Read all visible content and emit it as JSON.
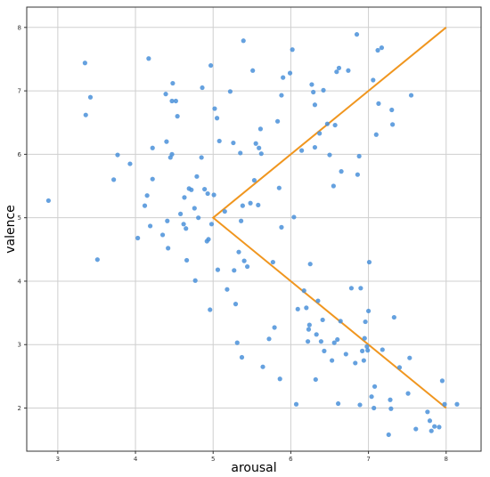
{
  "chart_data": {
    "type": "scatter",
    "title": "",
    "xlabel": "arousal",
    "ylabel": "valence",
    "xlim": [
      2.6,
      8.45
    ],
    "ylim": [
      1.32,
      8.32
    ],
    "xticks": [
      3,
      4,
      5,
      6,
      7,
      8
    ],
    "yticks": [
      2,
      3,
      4,
      5,
      6,
      7,
      8
    ],
    "grid": true,
    "legend": "none",
    "colors": {
      "points": "#4a90d9",
      "line": "#f0961f",
      "grid": "#cfcfcf",
      "frame": "#333333"
    },
    "series": [
      {
        "type": "scatter",
        "points": [
          [
            2.88,
            5.27
          ],
          [
            3.35,
            7.44
          ],
          [
            3.36,
            6.62
          ],
          [
            3.42,
            6.9
          ],
          [
            3.51,
            4.34
          ],
          [
            3.72,
            5.6
          ],
          [
            3.77,
            5.99
          ],
          [
            3.93,
            5.85
          ],
          [
            4.03,
            4.68
          ],
          [
            4.12,
            5.19
          ],
          [
            4.15,
            5.35
          ],
          [
            4.17,
            7.51
          ],
          [
            4.19,
            4.87
          ],
          [
            4.22,
            6.1
          ],
          [
            4.22,
            5.61
          ],
          [
            4.35,
            4.73
          ],
          [
            4.39,
            6.95
          ],
          [
            4.4,
            6.2
          ],
          [
            4.41,
            4.95
          ],
          [
            4.42,
            4.52
          ],
          [
            4.45,
            5.95
          ],
          [
            4.47,
            6.0
          ],
          [
            4.47,
            6.84
          ],
          [
            4.48,
            7.12
          ],
          [
            4.52,
            6.84
          ],
          [
            4.54,
            6.6
          ],
          [
            4.58,
            5.06
          ],
          [
            4.62,
            4.9
          ],
          [
            4.63,
            5.32
          ],
          [
            4.65,
            4.83
          ],
          [
            4.66,
            4.33
          ],
          [
            4.69,
            5.46
          ],
          [
            4.72,
            5.44
          ],
          [
            4.76,
            5.15
          ],
          [
            4.77,
            4.01
          ],
          [
            4.79,
            5.65
          ],
          [
            4.81,
            5.0
          ],
          [
            4.85,
            5.95
          ],
          [
            4.86,
            7.05
          ],
          [
            4.89,
            5.45
          ],
          [
            4.92,
            4.63
          ],
          [
            4.93,
            5.38
          ],
          [
            4.94,
            4.66
          ],
          [
            4.96,
            3.55
          ],
          [
            4.97,
            7.4
          ],
          [
            4.98,
            4.9
          ],
          [
            5.01,
            5.36
          ],
          [
            5.02,
            6.72
          ],
          [
            5.05,
            6.57
          ],
          [
            5.06,
            4.18
          ],
          [
            5.08,
            6.21
          ],
          [
            5.15,
            5.1
          ],
          [
            5.18,
            3.87
          ],
          [
            5.22,
            6.99
          ],
          [
            5.26,
            6.18
          ],
          [
            5.27,
            4.17
          ],
          [
            5.29,
            3.64
          ],
          [
            5.31,
            3.03
          ],
          [
            5.33,
            4.46
          ],
          [
            5.35,
            6.02
          ],
          [
            5.36,
            4.95
          ],
          [
            5.37,
            2.8
          ],
          [
            5.38,
            5.19
          ],
          [
            5.39,
            7.79
          ],
          [
            5.4,
            4.32
          ],
          [
            5.44,
            4.23
          ],
          [
            5.48,
            5.23
          ],
          [
            5.51,
            7.32
          ],
          [
            5.53,
            5.59
          ],
          [
            5.55,
            6.17
          ],
          [
            5.58,
            5.2
          ],
          [
            5.59,
            6.1
          ],
          [
            5.61,
            6.4
          ],
          [
            5.62,
            6.01
          ],
          [
            5.64,
            2.65
          ],
          [
            5.72,
            3.09
          ],
          [
            5.77,
            4.3
          ],
          [
            5.79,
            3.27
          ],
          [
            5.83,
            6.52
          ],
          [
            5.85,
            5.47
          ],
          [
            5.86,
            2.46
          ],
          [
            5.88,
            6.93
          ],
          [
            5.88,
            4.85
          ],
          [
            5.9,
            7.21
          ],
          [
            5.99,
            7.28
          ],
          [
            6.02,
            7.65
          ],
          [
            6.04,
            5.01
          ],
          [
            6.07,
            2.06
          ],
          [
            6.09,
            3.56
          ],
          [
            6.14,
            6.06
          ],
          [
            6.17,
            3.85
          ],
          [
            6.2,
            3.58
          ],
          [
            6.22,
            3.05
          ],
          [
            6.23,
            3.24
          ],
          [
            6.24,
            3.31
          ],
          [
            6.25,
            4.27
          ],
          [
            6.27,
            7.1
          ],
          [
            6.29,
            6.98
          ],
          [
            6.31,
            6.11
          ],
          [
            6.31,
            6.78
          ],
          [
            6.32,
            2.45
          ],
          [
            6.33,
            3.16
          ],
          [
            6.35,
            3.69
          ],
          [
            6.37,
            6.33
          ],
          [
            6.39,
            3.05
          ],
          [
            6.41,
            3.39
          ],
          [
            6.42,
            7.01
          ],
          [
            6.43,
            2.9
          ],
          [
            6.47,
            6.48
          ],
          [
            6.5,
            5.99
          ],
          [
            6.53,
            2.75
          ],
          [
            6.55,
            5.5
          ],
          [
            6.56,
            3.03
          ],
          [
            6.57,
            6.46
          ],
          [
            6.59,
            7.3
          ],
          [
            6.6,
            3.08
          ],
          [
            6.61,
            2.07
          ],
          [
            6.62,
            7.36
          ],
          [
            6.64,
            3.37
          ],
          [
            6.65,
            5.73
          ],
          [
            6.71,
            2.85
          ],
          [
            6.74,
            7.32
          ],
          [
            6.78,
            3.89
          ],
          [
            6.83,
            2.71
          ],
          [
            6.85,
            7.89
          ],
          [
            6.86,
            5.68
          ],
          [
            6.88,
            5.97
          ],
          [
            6.89,
            2.05
          ],
          [
            6.9,
            3.89
          ],
          [
            6.92,
            2.9
          ],
          [
            6.94,
            2.75
          ],
          [
            6.95,
            3.1
          ],
          [
            6.96,
            3.36
          ],
          [
            6.98,
            2.97
          ],
          [
            6.99,
            2.91
          ],
          [
            7.0,
            3.53
          ],
          [
            7.01,
            4.3
          ],
          [
            7.04,
            2.18
          ],
          [
            7.06,
            7.17
          ],
          [
            7.07,
            2.0
          ],
          [
            7.08,
            2.34
          ],
          [
            7.1,
            6.31
          ],
          [
            7.12,
            7.64
          ],
          [
            7.13,
            6.8
          ],
          [
            7.17,
            7.68
          ],
          [
            7.18,
            2.92
          ],
          [
            7.26,
            1.58
          ],
          [
            7.28,
            2.13
          ],
          [
            7.29,
            1.99
          ],
          [
            7.3,
            6.7
          ],
          [
            7.31,
            6.47
          ],
          [
            7.33,
            3.43
          ],
          [
            7.4,
            2.64
          ],
          [
            7.51,
            2.23
          ],
          [
            7.53,
            2.79
          ],
          [
            7.55,
            6.93
          ],
          [
            7.61,
            1.67
          ],
          [
            7.76,
            1.94
          ],
          [
            7.79,
            1.8
          ],
          [
            7.81,
            1.64
          ],
          [
            7.85,
            1.71
          ],
          [
            7.91,
            1.7
          ],
          [
            7.95,
            2.43
          ],
          [
            7.98,
            2.06
          ],
          [
            8.14,
            2.06
          ]
        ]
      },
      {
        "type": "line",
        "points": [
          [
            8,
            8
          ],
          [
            5,
            5
          ],
          [
            8,
            2
          ]
        ]
      }
    ]
  }
}
